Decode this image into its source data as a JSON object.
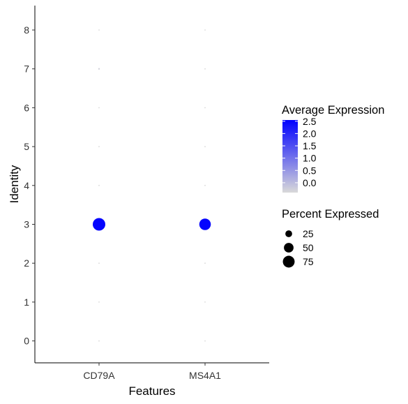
{
  "chart_data": {
    "type": "scatter",
    "subtype": "dot plot",
    "xlabel": "Features",
    "ylabel": "Identity",
    "categories_x": [
      "CD79A",
      "MS4A1"
    ],
    "categories_y": [
      "0",
      "1",
      "2",
      "3",
      "4",
      "5",
      "6",
      "7",
      "8"
    ],
    "points": [
      {
        "feature": "CD79A",
        "identity": "0",
        "avg_exp": -0.4,
        "pct": 0
      },
      {
        "feature": "CD79A",
        "identity": "1",
        "avg_exp": -0.4,
        "pct": 0
      },
      {
        "feature": "CD79A",
        "identity": "2",
        "avg_exp": -0.4,
        "pct": 0
      },
      {
        "feature": "CD79A",
        "identity": "3",
        "avg_exp": 2.5,
        "pct": 85
      },
      {
        "feature": "CD79A",
        "identity": "4",
        "avg_exp": -0.4,
        "pct": 0
      },
      {
        "feature": "CD79A",
        "identity": "5",
        "avg_exp": -0.4,
        "pct": 0
      },
      {
        "feature": "CD79A",
        "identity": "6",
        "avg_exp": -0.4,
        "pct": 0
      },
      {
        "feature": "CD79A",
        "identity": "7",
        "avg_exp": -0.3,
        "pct": 1
      },
      {
        "feature": "CD79A",
        "identity": "8",
        "avg_exp": -0.4,
        "pct": 0
      },
      {
        "feature": "MS4A1",
        "identity": "0",
        "avg_exp": -0.4,
        "pct": 0
      },
      {
        "feature": "MS4A1",
        "identity": "1",
        "avg_exp": -0.4,
        "pct": 0
      },
      {
        "feature": "MS4A1",
        "identity": "2",
        "avg_exp": -0.4,
        "pct": 0
      },
      {
        "feature": "MS4A1",
        "identity": "3",
        "avg_exp": 2.5,
        "pct": 72
      },
      {
        "feature": "MS4A1",
        "identity": "4",
        "avg_exp": -0.4,
        "pct": 0
      },
      {
        "feature": "MS4A1",
        "identity": "5",
        "avg_exp": -0.4,
        "pct": 0
      },
      {
        "feature": "MS4A1",
        "identity": "6",
        "avg_exp": -0.4,
        "pct": 0
      },
      {
        "feature": "MS4A1",
        "identity": "7",
        "avg_exp": -0.4,
        "pct": 0
      },
      {
        "feature": "MS4A1",
        "identity": "8",
        "avg_exp": -0.4,
        "pct": 0
      }
    ],
    "color_legend": {
      "title": "Average Expression",
      "ticks": [
        "2.5",
        "2.0",
        "1.5",
        "1.0",
        "0.5",
        "0.0"
      ],
      "tick_values": [
        2.5,
        2.0,
        1.5,
        1.0,
        0.5,
        0.0
      ],
      "range": [
        -0.4,
        2.55
      ],
      "low_color": "#d9d9d9",
      "high_color": "#0000ff"
    },
    "size_legend": {
      "title": "Percent Expressed",
      "labels": [
        "25",
        "50",
        "75"
      ],
      "values": [
        25,
        50,
        75
      ]
    },
    "grid": false,
    "legend_position": "right"
  }
}
